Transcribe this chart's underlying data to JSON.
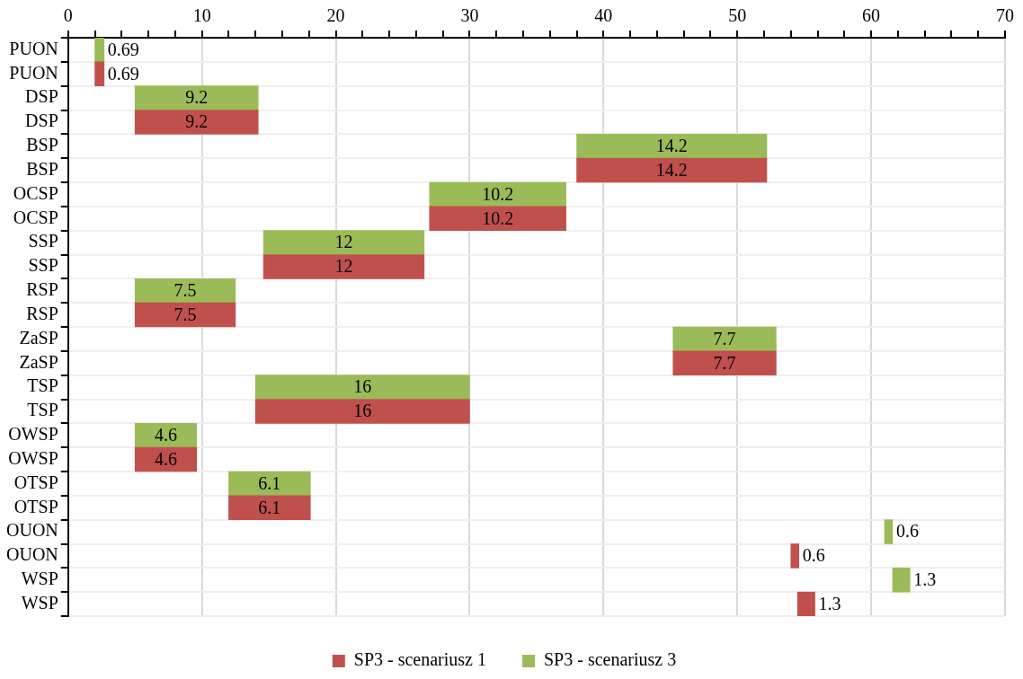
{
  "chart_data": {
    "type": "bar",
    "orientation": "horizontal",
    "categories": [
      "PUON",
      "PUON",
      "DSP",
      "DSP",
      "BSP",
      "BSP",
      "OCSP",
      "OCSP",
      "SSP",
      "SSP",
      "RSP",
      "RSP",
      "ZaSP",
      "ZaSP",
      "TSP",
      "TSP",
      "OWSP",
      "OWSP",
      "OTSP",
      "OTSP",
      "OUON",
      "OUON",
      "WSP",
      "WSP"
    ],
    "series": [
      {
        "name": "SP3 - scenariusz 1",
        "color": "#c0504d",
        "values": [
          null,
          0.69,
          null,
          9.2,
          null,
          14.2,
          null,
          10.2,
          null,
          12,
          null,
          7.5,
          null,
          7.7,
          null,
          16,
          null,
          4.6,
          null,
          6.1,
          null,
          0.6,
          null,
          1.3
        ],
        "base": [
          null,
          2,
          null,
          5,
          null,
          38,
          null,
          27,
          null,
          14.6,
          null,
          5,
          null,
          45.2,
          null,
          14,
          null,
          5,
          null,
          12,
          null,
          54,
          null,
          54.5
        ]
      },
      {
        "name": "SP3 - scenariusz 3",
        "color": "#9bbb59",
        "values": [
          0.69,
          null,
          9.2,
          null,
          14.2,
          null,
          10.2,
          null,
          12,
          null,
          7.5,
          null,
          7.7,
          null,
          16,
          null,
          4.6,
          null,
          6.1,
          null,
          0.6,
          null,
          1.3,
          null
        ],
        "base": [
          2,
          null,
          5,
          null,
          38,
          null,
          27,
          null,
          14.6,
          null,
          5,
          null,
          45.2,
          null,
          14,
          null,
          5,
          null,
          12,
          null,
          61,
          null,
          61.6,
          null
        ]
      }
    ],
    "xlim": [
      0,
      70
    ],
    "xticks": [
      0,
      {
        "value": 2,
        "label": null
      },
      {
        "value": 4,
        "label": null
      },
      {
        "value": 6,
        "label": null
      },
      {
        "value": 8,
        "label": null
      },
      10,
      {
        "value": 12,
        "label": null
      },
      {
        "value": 14,
        "label": null
      },
      {
        "value": 16,
        "label": null
      },
      {
        "value": 18,
        "label": null
      },
      20,
      {
        "value": 22,
        "label": null
      },
      {
        "value": 24,
        "label": null
      },
      {
        "value": 26,
        "label": null
      },
      {
        "value": 28,
        "label": null
      },
      30,
      {
        "value": 32,
        "label": null
      },
      {
        "value": 34,
        "label": null
      },
      {
        "value": 36,
        "label": null
      },
      {
        "value": 38,
        "label": null
      },
      40,
      {
        "value": 42,
        "label": null
      },
      {
        "value": 44,
        "label": null
      },
      {
        "value": 46,
        "label": null
      },
      {
        "value": 48,
        "label": null
      },
      50,
      {
        "value": 52,
        "label": null
      },
      {
        "value": 54,
        "label": null
      },
      {
        "value": 56,
        "label": null
      },
      {
        "value": 58,
        "label": null
      },
      60,
      {
        "value": 62,
        "label": null
      },
      {
        "value": 64,
        "label": null
      },
      {
        "value": 66,
        "label": null
      },
      {
        "value": 68,
        "label": null
      },
      70
    ],
    "grid": true,
    "legend": "bottom",
    "data_labels": true
  }
}
